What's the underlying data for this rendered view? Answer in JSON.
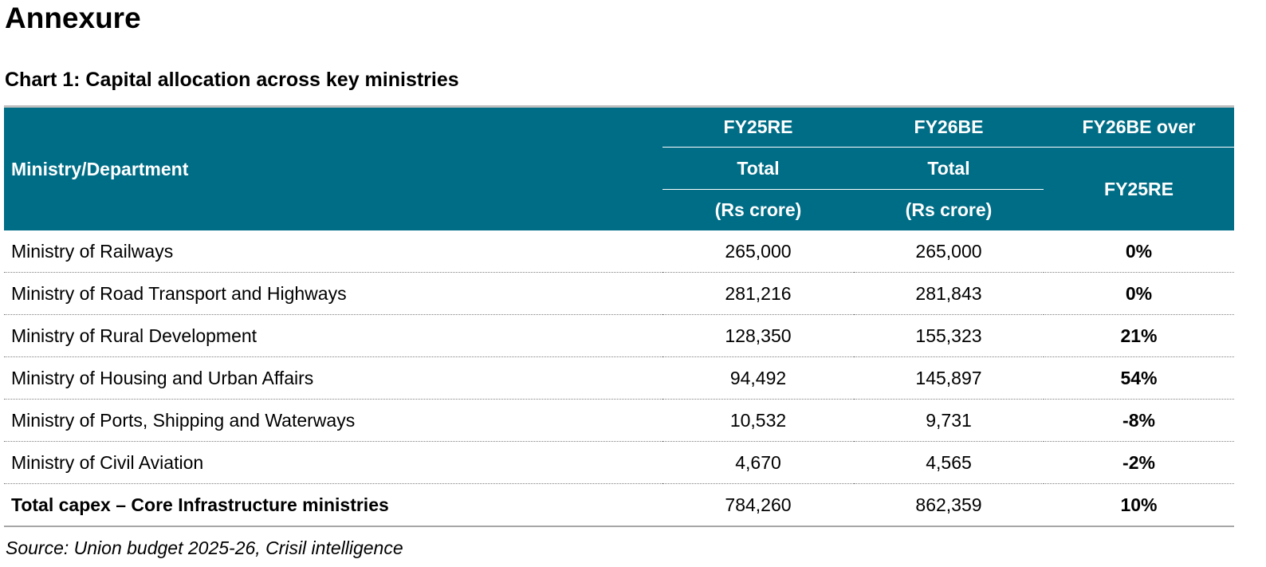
{
  "page": {
    "heading": "Annexure",
    "chart_title": "Chart 1: Capital allocation across key ministries",
    "source": "Source: Union budget 2025-26, Crisil intelligence"
  },
  "colors": {
    "header_background": "#006d86",
    "header_text": "#ffffff"
  },
  "table": {
    "headers": {
      "ministry": "Ministry/Department",
      "fy25_line1": "FY25RE",
      "fy25_line2": "Total",
      "fy25_line3": "(Rs crore)",
      "fy26_line1": "FY26BE",
      "fy26_line2": "Total",
      "fy26_line3": "(Rs crore)",
      "change_line1": "FY26BE over",
      "change_line2": "FY25RE"
    },
    "rows": [
      {
        "ministry": "Ministry of Railways",
        "fy25re": "265,000",
        "fy26be": "265,000",
        "change": "0%"
      },
      {
        "ministry": "Ministry of Road Transport and Highways",
        "fy25re": "281,216",
        "fy26be": "281,843",
        "change": "0%"
      },
      {
        "ministry": "Ministry of Rural Development",
        "fy25re": "128,350",
        "fy26be": "155,323",
        "change": "21%"
      },
      {
        "ministry": "Ministry of Housing and Urban Affairs",
        "fy25re": "94,492",
        "fy26be": "145,897",
        "change": "54%"
      },
      {
        "ministry": "Ministry of Ports, Shipping and Waterways",
        "fy25re": "10,532",
        "fy26be": "9,731",
        "change": "-8%"
      },
      {
        "ministry": "Ministry of Civil Aviation",
        "fy25re": "4,670",
        "fy26be": "4,565",
        "change": "-2%"
      }
    ],
    "total": {
      "ministry": "Total capex – Core Infrastructure ministries",
      "fy25re": "784,260",
      "fy26be": "862,359",
      "change": "10%"
    }
  }
}
